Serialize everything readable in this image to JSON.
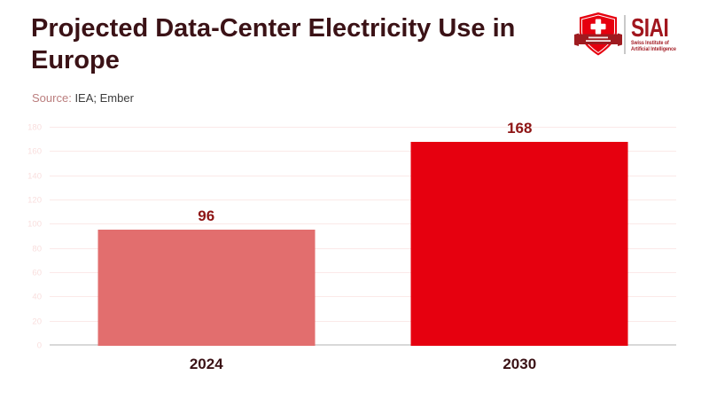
{
  "header": {
    "title_line1": "Projected Data-Center Electricity Use in",
    "title_line2": "Europe",
    "source_label": "Source:",
    "source_value": "IEA; Ember"
  },
  "logo": {
    "acronym": "SIAI",
    "org_line1": "Swiss Institute of",
    "org_line2": "Artificial Intelligence"
  },
  "chart_data": {
    "type": "bar",
    "title": "Projected Data-Center Electricity Use in Europe",
    "source": "IEA; Ember",
    "categories": [
      "2024",
      "2030"
    ],
    "values": [
      96,
      168
    ],
    "xlabel": "",
    "ylabel": "",
    "ylim": [
      0,
      180
    ],
    "yticks": [
      0,
      20,
      40,
      60,
      80,
      100,
      120,
      140,
      160,
      180
    ],
    "grid": true,
    "legend": false,
    "bar_colors": [
      "#e26e6e",
      "#e6000f"
    ]
  },
  "colors": {
    "title_text": "#3b1216",
    "category_label": "#3b1216",
    "data_label": "#8e1515",
    "tick_label": "#f9dedd",
    "gridline": "#fbe9e8",
    "axis_line": "#d9d9d9",
    "source_label": "#bb7e7e",
    "source_value": "#3d3d3d",
    "logo_shield_red": "#e6000f",
    "logo_ribbon_red": "#9e1b20",
    "logo_text_red": "#a1161e"
  }
}
